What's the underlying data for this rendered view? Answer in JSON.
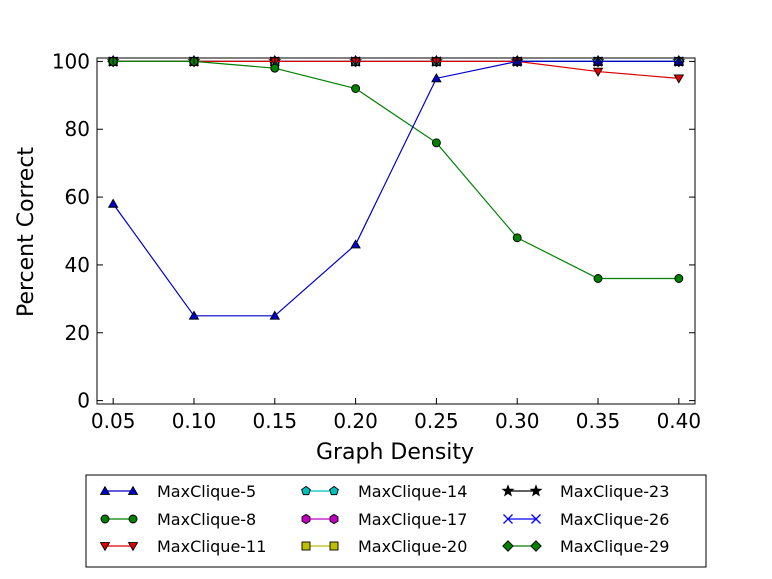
{
  "chart_data": {
    "type": "line",
    "title": "",
    "xlabel": "Graph Density",
    "ylabel": "Percent Correct",
    "xlim": [
      0.04,
      0.41
    ],
    "ylim": [
      -1,
      101
    ],
    "x": [
      0.05,
      0.1,
      0.15,
      0.2,
      0.25,
      0.3,
      0.35,
      0.4
    ],
    "x_tick_labels": [
      "0.05",
      "0.10",
      "0.15",
      "0.20",
      "0.25",
      "0.30",
      "0.35",
      "0.40"
    ],
    "y_ticks": [
      0,
      20,
      40,
      60,
      80,
      100
    ],
    "y_tick_labels": [
      "0",
      "20",
      "40",
      "60",
      "80",
      "100"
    ],
    "grid": false,
    "legend_placement": "bottom-center",
    "series": [
      {
        "name": "MaxClique-5",
        "color": "#0000cc",
        "marker": "triangle-up",
        "values": [
          58,
          25,
          25,
          46,
          95,
          100,
          100,
          100
        ]
      },
      {
        "name": "MaxClique-8",
        "color": "#008000",
        "marker": "circle",
        "values": [
          100,
          100,
          98,
          92,
          76,
          48,
          36,
          36
        ]
      },
      {
        "name": "MaxClique-11",
        "color": "#dd0000",
        "marker": "triangle-down",
        "values": [
          100,
          100,
          100,
          100,
          100,
          100,
          97,
          95
        ]
      },
      {
        "name": "MaxClique-14",
        "color": "#00bfbf",
        "marker": "pentagon",
        "values": [
          100,
          100,
          100,
          100,
          100,
          100,
          100,
          100
        ]
      },
      {
        "name": "MaxClique-17",
        "color": "#bf00bf",
        "marker": "hexagon",
        "values": [
          100,
          100,
          100,
          100,
          100,
          100,
          100,
          100
        ]
      },
      {
        "name": "MaxClique-20",
        "color": "#bfbf00",
        "marker": "square",
        "values": [
          100,
          100,
          100,
          100,
          100,
          100,
          100,
          100
        ]
      },
      {
        "name": "MaxClique-23",
        "color": "#000000",
        "marker": "star",
        "values": [
          100,
          100,
          100,
          100,
          100,
          100,
          100,
          100
        ]
      },
      {
        "name": "MaxClique-26",
        "color": "#0000ff",
        "marker": "x",
        "values": [
          100,
          100,
          100,
          100,
          100,
          100,
          100,
          100
        ]
      },
      {
        "name": "MaxClique-29",
        "color": "#008000",
        "marker": "diamond",
        "values": [
          100,
          100,
          100,
          100,
          100,
          100,
          100,
          100
        ]
      }
    ]
  }
}
